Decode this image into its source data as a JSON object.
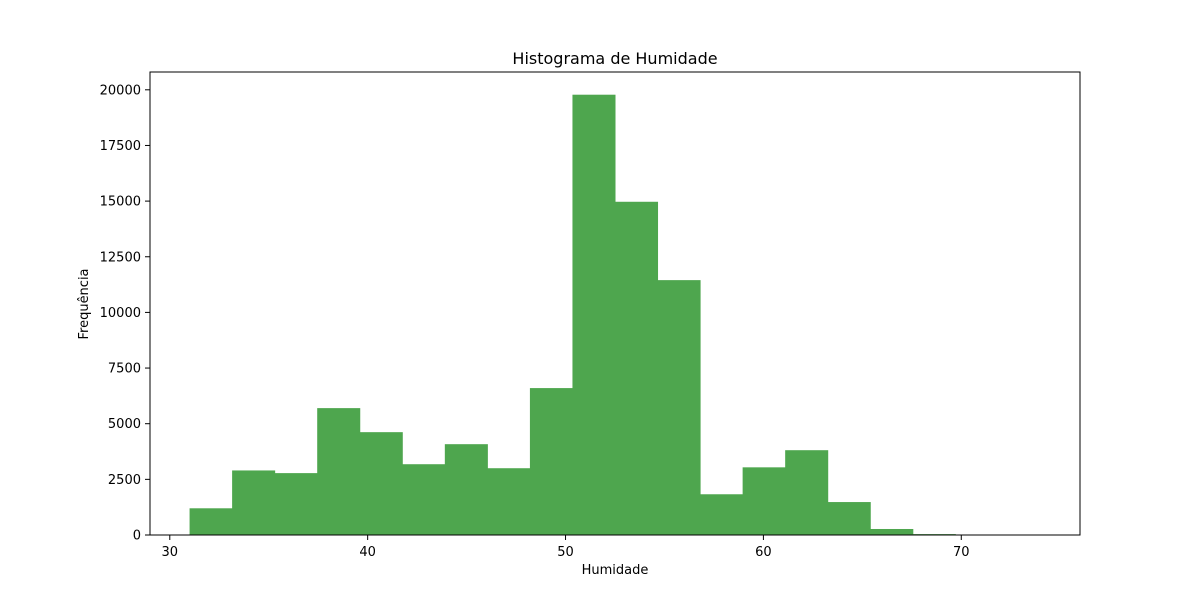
{
  "chart_data": {
    "type": "bar",
    "title": "Histograma de Humidade",
    "xlabel": "Humidade",
    "ylabel": "Frequência",
    "bin_edges": [
      31.0,
      33.15,
      35.3,
      37.45,
      39.6,
      41.75,
      43.9,
      46.05,
      48.2,
      50.35,
      52.5,
      54.65,
      56.8,
      58.95,
      61.1,
      63.25,
      65.4,
      67.55,
      69.7,
      71.85,
      74.0
    ],
    "values": [
      1200,
      2900,
      2780,
      5700,
      4620,
      3180,
      4080,
      3000,
      6600,
      19780,
      14970,
      11450,
      1830,
      3040,
      3810,
      1480,
      270,
      40,
      10,
      5
    ],
    "xlim": [
      29.0,
      76.0
    ],
    "ylim": [
      0,
      20800
    ],
    "xticks": [
      30,
      40,
      50,
      60,
      70
    ],
    "yticks": [
      0,
      2500,
      5000,
      7500,
      10000,
      12500,
      15000,
      17500,
      20000
    ],
    "bar_color": "#4ea64e",
    "grid": false
  }
}
